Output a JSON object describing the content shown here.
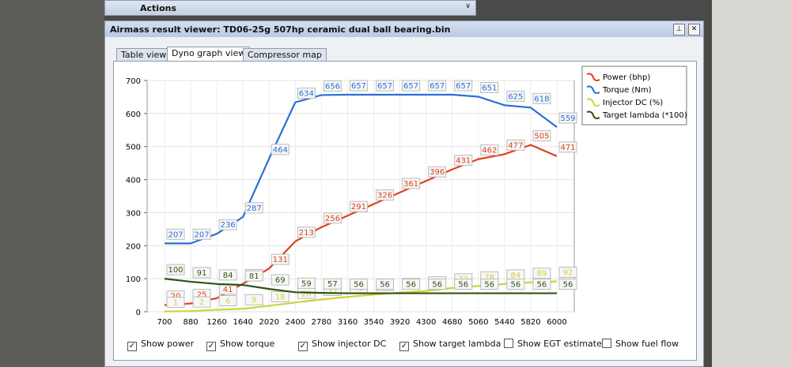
{
  "toolbar": {
    "title": "Actions"
  },
  "window": {
    "title": "Airmass result viewer: TD06-25g 507hp ceramic dual ball bearing.bin"
  },
  "tabs": [
    "Table view",
    "Dyno graph view",
    "Compressor map"
  ],
  "checkboxes": [
    {
      "label": "Show power",
      "checked": true
    },
    {
      "label": "Show torque",
      "checked": true
    },
    {
      "label": "Show injector DC",
      "checked": true
    },
    {
      "label": "Show target lambda",
      "checked": true
    },
    {
      "label": "Show EGT estimate",
      "checked": false
    },
    {
      "label": "Show fuel flow",
      "checked": false
    }
  ],
  "chart_data": {
    "type": "line",
    "categories": [
      700,
      880,
      1260,
      1640,
      2020,
      2400,
      2780,
      3160,
      3540,
      3920,
      4300,
      4680,
      5060,
      5440,
      5820,
      6000
    ],
    "ylim": [
      0,
      700
    ],
    "yticks": [
      0,
      100,
      200,
      300,
      400,
      500,
      600,
      700
    ],
    "grid": true,
    "legend": "right",
    "series": [
      {
        "name": "Power (bhp)",
        "color": "#e0401c",
        "values": [
          20,
          25,
          41,
          85,
          131,
          213,
          256,
          291,
          326,
          361,
          396,
          431,
          462,
          477,
          505,
          471
        ]
      },
      {
        "name": "Torque (Nm)",
        "color": "#2a6fd8",
        "values": [
          207,
          207,
          236,
          287,
          464,
          634,
          656,
          657,
          657,
          657,
          657,
          657,
          651,
          625,
          618,
          559
        ]
      },
      {
        "name": "Injector DC (%)",
        "color": "#c9d43c",
        "values": [
          1,
          2,
          6,
          9,
          18,
          28,
          37,
          45,
          52,
          58,
          63,
          72,
          78,
          84,
          89,
          92
        ]
      },
      {
        "name": "Target lambda (*100)",
        "color": "#2d5516",
        "values": [
          100,
          91,
          84,
          81,
          69,
          59,
          57,
          56,
          56,
          56,
          56,
          56,
          56,
          56,
          56,
          56
        ]
      }
    ]
  }
}
